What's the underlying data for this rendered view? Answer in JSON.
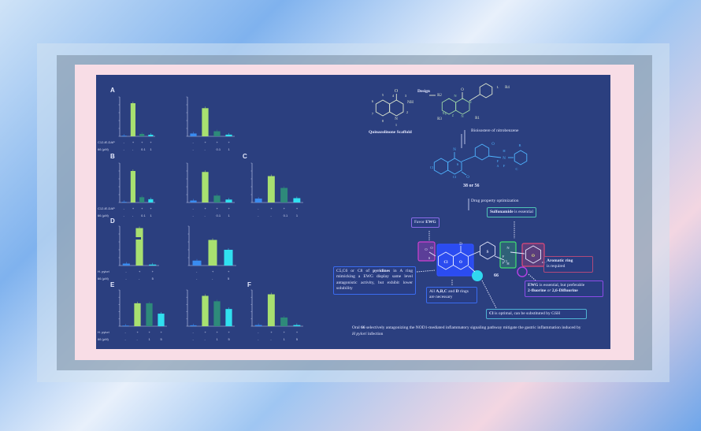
{
  "colors": {
    "panel": "#2b3f7f",
    "bar_control": "#3a8cf0",
    "bar_stim": "#a8e070",
    "bar_low": "#2e8a7a",
    "bar_high": "#30e0f0"
  },
  "panel_letters": [
    "A",
    "B",
    "C",
    "D",
    "E",
    "F"
  ],
  "row_labels": {
    "stim1": "C12-iE-DAP",
    "stim2": "H. pylori",
    "dose": "66 (μM)"
  },
  "chart_data": [
    {
      "type": "bar",
      "panel": "A",
      "ylim": [
        0,
        50
      ],
      "values": [
        0.5,
        42,
        3,
        2
      ],
      "stim": [
        "-",
        "+",
        "+",
        "+"
      ],
      "dose": [
        "-",
        "-",
        "0.1",
        "1"
      ]
    },
    {
      "type": "bar",
      "panel": "A",
      "ylim": [
        0,
        1.4
      ],
      "values": [
        0.1,
        1.0,
        0.18,
        0.06
      ],
      "stim": [
        "-",
        "+",
        "+",
        "+"
      ],
      "dose": [
        "-",
        "-",
        "0.1",
        "1"
      ]
    },
    {
      "type": "bar",
      "panel": "B",
      "ylim": [
        0,
        60
      ],
      "values": [
        0.5,
        48,
        8,
        5
      ],
      "stim": [
        "-",
        "+",
        "+",
        "+"
      ],
      "dose": [
        "-",
        "-",
        "0.1",
        "1"
      ]
    },
    {
      "type": "bar",
      "panel": "B",
      "ylim": [
        0,
        2.0
      ],
      "values": [
        0.1,
        1.55,
        0.35,
        0.15
      ],
      "stim": [
        "-",
        "+",
        "+",
        "+"
      ],
      "dose": [
        "-",
        "-",
        "0.1",
        "1"
      ]
    },
    {
      "type": "bar",
      "panel": "C",
      "ylim": [
        0,
        10
      ],
      "values": [
        1,
        6.7,
        3.7,
        1.1
      ],
      "stim": [
        "-",
        "+",
        "+",
        "+"
      ],
      "dose": [
        "-",
        "-",
        "0.1",
        "1"
      ]
    },
    {
      "type": "bar",
      "panel": "D",
      "ylim": [
        0,
        20
      ],
      "values": [
        1,
        19,
        0.5
      ],
      "stim": [
        "-",
        "+",
        "+"
      ],
      "dose": [
        "-",
        "-",
        "5"
      ]
    },
    {
      "type": "bar",
      "panel": "D",
      "ylim": [
        0,
        8
      ],
      "values": [
        1,
        5.2,
        3.2
      ],
      "stim": [
        "-",
        "+",
        "+"
      ],
      "dose": [
        "-",
        "-",
        "5"
      ]
    },
    {
      "type": "bar",
      "panel": "E",
      "ylim": [
        0,
        1500
      ],
      "values": [
        0,
        950,
        950,
        520
      ],
      "stim": [
        "-",
        "+",
        "+",
        "+"
      ],
      "dose": [
        "-",
        "-",
        "1",
        "5"
      ]
    },
    {
      "type": "bar",
      "panel": "E",
      "ylim": [
        0,
        80
      ],
      "values": [
        2,
        67,
        55,
        38
      ],
      "stim": [
        "-",
        "+",
        "+",
        "+"
      ],
      "dose": [
        "-",
        "-",
        "1",
        "5"
      ]
    },
    {
      "type": "bar",
      "panel": "F",
      "ylim": [
        0,
        250
      ],
      "values": [
        8,
        220,
        60,
        8
      ],
      "stim": [
        "-",
        "+",
        "+",
        "+"
      ],
      "dose": [
        "-",
        "-",
        "1",
        "5"
      ]
    }
  ],
  "scheme": {
    "scaffold_label": "Quinazolinone Scaffold",
    "design": "Design",
    "bioisostere": "Bioisostere of nitrobenzene",
    "compound_38": "38 or 56",
    "drug_opt": "Drug property optimization",
    "compound_66": "66",
    "favor_ewg_1": "Favor ",
    "favor_ewg_2": "EWG",
    "sulfonamide_1": "Sulfonamide",
    "sulfonamide_2": " is essential",
    "aromatic_1": "Aromatic ring",
    "aromatic_2": "is required",
    "pyridine_1": "C5,C6 or C8 of ",
    "pyridine_2": "pyridines",
    "pyridine_3": " in A ring mimicking a EWG display same level antagonistic activity, but exhibit lower solubility",
    "rings_1": "All ",
    "rings_2": "A,B,C",
    "rings_3": " and ",
    "rings_4": "D",
    "rings_5": " rings are necessary",
    "ewg_1": "EWG",
    "ewg_2": " is essential, but preferable ",
    "ewg_3": "2-fluorine",
    "ewg_4": " or ",
    "ewg_5": "2,6-Difluorine",
    "cl_1": "Cl",
    "cl_2": " is optimal, can be substituted by GSH",
    "footer_1": "Oral ",
    "footer_2": "66",
    "footer_3": " selectively antagonizing the NOD1-mediated inflammatory signaling pathway mitigate the gastric inflammation induced by ",
    "footer_4": "H pylori",
    "footer_5": " infection",
    "atoms": [
      "O",
      "NH",
      "N",
      "5",
      "6",
      "7",
      "8",
      "4",
      "3",
      "2",
      "1",
      "R2",
      "R3",
      "R4",
      "R1",
      "N",
      "X",
      "Y",
      "Z",
      "N",
      "L",
      "O",
      "N",
      "N",
      "Cl",
      "Cl",
      "S",
      "O",
      "O",
      "N",
      "H",
      "F",
      "F",
      "A",
      "B",
      "C",
      "D",
      "O",
      "S",
      "O",
      "Cl",
      "O",
      "S",
      "O",
      "N",
      "H",
      "F",
      "F",
      "Cl"
    ]
  }
}
